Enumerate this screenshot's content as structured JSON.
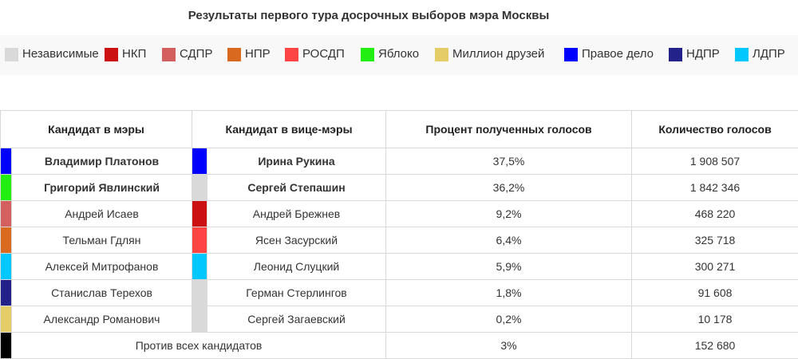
{
  "title": "Результаты первого тура досрочных выборов мэра Москвы",
  "legend": [
    {
      "label": "Независимые",
      "color": "#d9d9d9"
    },
    {
      "label": "НКП",
      "color": "#cc1111"
    },
    {
      "label": "СДПР",
      "color": "#d45f5f"
    },
    {
      "label": "НПР",
      "color": "#d9691f"
    },
    {
      "label": "РОСДП",
      "color": "#ff4444"
    },
    {
      "label": "Яблоко",
      "color": "#22ee11"
    },
    {
      "label": "Миллион друзей",
      "color": "#e6cc66"
    },
    {
      "label": "Правое дело",
      "color": "#0000ff"
    },
    {
      "label": "НДПР",
      "color": "#22228a"
    },
    {
      "label": "ЛДПР",
      "color": "#00c8ff"
    }
  ],
  "table": {
    "headers": {
      "mayor": "Кандидат в мэры",
      "vice": "Кандидат в вице-мэры",
      "percent": "Процент полученных голосов",
      "votes": "Количество голосов"
    },
    "rows": [
      {
        "mayor_color": "#0000ff",
        "mayor": "Владимир Платонов",
        "vice_color": "#0000ff",
        "vice": "Ирина Рукина",
        "percent": "37,5%",
        "votes": "1 908 507",
        "bold": true
      },
      {
        "mayor_color": "#22ee11",
        "mayor": "Григорий Явлинский",
        "vice_color": "#d9d9d9",
        "vice": "Сергей Степашин",
        "percent": "36,2%",
        "votes": "1 842 346",
        "bold": true
      },
      {
        "mayor_color": "#d45f5f",
        "mayor": "Андрей Исаев",
        "vice_color": "#cc1111",
        "vice": "Андрей Брежнев",
        "percent": "9,2%",
        "votes": "468 220",
        "bold": false
      },
      {
        "mayor_color": "#d9691f",
        "mayor": "Тельман Гдлян",
        "vice_color": "#ff4444",
        "vice": "Ясен Засурский",
        "percent": "6,4%",
        "votes": "325 718",
        "bold": false
      },
      {
        "mayor_color": "#00c8ff",
        "mayor": "Алексей Митрофанов",
        "vice_color": "#00c8ff",
        "vice": "Леонид Слуцкий",
        "percent": "5,9%",
        "votes": "300 271",
        "bold": false
      },
      {
        "mayor_color": "#22228a",
        "mayor": "Станислав Терехов",
        "vice_color": "#d9d9d9",
        "vice": "Герман Стерлингов",
        "percent": "1,8%",
        "votes": "91 608",
        "bold": false
      },
      {
        "mayor_color": "#e6cc66",
        "mayor": "Александр Романович",
        "vice_color": "#d9d9d9",
        "vice": "Сергей Загаевский",
        "percent": "0,2%",
        "votes": "10 178",
        "bold": false
      }
    ],
    "against_all": {
      "color": "#000000",
      "label": "Против всех кандидатов",
      "percent": "3%",
      "votes": "152 680"
    }
  }
}
